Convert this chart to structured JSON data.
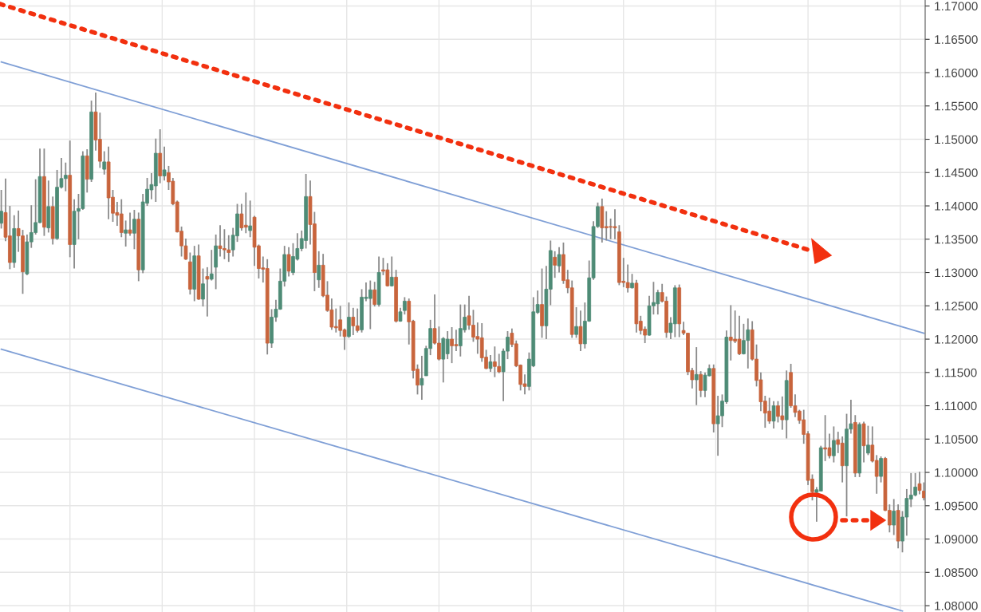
{
  "chart_data": {
    "type": "candlestick",
    "categories": [
      null,
      null,
      null,
      null,
      null,
      null,
      null,
      null,
      null,
      null,
      null,
      null,
      null,
      null,
      null,
      null,
      null,
      null,
      null,
      null,
      null,
      null,
      null,
      null,
      null,
      null,
      null,
      null,
      null,
      null,
      null,
      null,
      null,
      null,
      null,
      null,
      null,
      null,
      null,
      null,
      null,
      null,
      null,
      null,
      null,
      null,
      null,
      null,
      null,
      null,
      null,
      null,
      null,
      null,
      null,
      null,
      null,
      null,
      null,
      null,
      null,
      null,
      null,
      null,
      null,
      null,
      null,
      null,
      null,
      null,
      null,
      null,
      null,
      null,
      null,
      null,
      null,
      null,
      null,
      null,
      null,
      null,
      null,
      null,
      null,
      null,
      null,
      null,
      null,
      null,
      null,
      null,
      null,
      null,
      null,
      null,
      null,
      null,
      null,
      null,
      null,
      null,
      null,
      null,
      null,
      null,
      null,
      null,
      null,
      null,
      null,
      null,
      null,
      null,
      null,
      null,
      null,
      null,
      null,
      null,
      null,
      null,
      null,
      null,
      null,
      null,
      null,
      null,
      null,
      null,
      null,
      null,
      null,
      null,
      null,
      null,
      null,
      null,
      null,
      null,
      null,
      null,
      null,
      null,
      null,
      null,
      null,
      null,
      null,
      null,
      null,
      null,
      null,
      null,
      null,
      null,
      null,
      null,
      null,
      null,
      null,
      null,
      null,
      null,
      null,
      null,
      null,
      null,
      null,
      null,
      null,
      null,
      null,
      null,
      null,
      null,
      null,
      null,
      null,
      null,
      null,
      null,
      null,
      null,
      null,
      null,
      null,
      null,
      null,
      null,
      null,
      null,
      null,
      null,
      null,
      null,
      null,
      null,
      null,
      null,
      null,
      null,
      null,
      null,
      null,
      null,
      null,
      null,
      null,
      null,
      null,
      null,
      null,
      null,
      null,
      null
    ],
    "ohlc": [
      [
        1.1374,
        1.1424,
        1.1366,
        1.1392
      ],
      [
        1.139,
        1.1441,
        1.1347,
        1.1353
      ],
      [
        1.1355,
        1.14,
        1.1305,
        1.1315
      ],
      [
        1.1315,
        1.1386,
        1.1307,
        1.1366
      ],
      [
        1.1366,
        1.1393,
        1.1331,
        1.1355
      ],
      [
        1.1355,
        1.1364,
        1.1268,
        1.1301
      ],
      [
        1.1298,
        1.1357,
        1.1296,
        1.1346
      ],
      [
        1.1346,
        1.1401,
        1.1337,
        1.136
      ],
      [
        1.136,
        1.144,
        1.1357,
        1.1375
      ],
      [
        1.1375,
        1.1486,
        1.1374,
        1.1444
      ],
      [
        1.1444,
        1.1486,
        1.1355,
        1.1368
      ],
      [
        1.1367,
        1.1438,
        1.136,
        1.1399
      ],
      [
        1.1399,
        1.1414,
        1.1342,
        1.1351
      ],
      [
        1.1351,
        1.1454,
        1.1349,
        1.1428
      ],
      [
        1.1428,
        1.1472,
        1.1426,
        1.1441
      ],
      [
        1.1441,
        1.1465,
        1.1422,
        1.1446
      ],
      [
        1.1446,
        1.1498,
        1.1323,
        1.1342
      ],
      [
        1.1342,
        1.141,
        1.1306,
        1.1392
      ],
      [
        1.1392,
        1.1418,
        1.135,
        1.1396
      ],
      [
        1.1396,
        1.1482,
        1.1394,
        1.1475
      ],
      [
        1.1475,
        1.1485,
        1.142,
        1.144
      ],
      [
        1.144,
        1.1558,
        1.1436,
        1.1541
      ],
      [
        1.1541,
        1.157,
        1.1483,
        1.1499
      ],
      [
        1.15,
        1.154,
        1.1457,
        1.1467
      ],
      [
        1.1455,
        1.1482,
        1.1447,
        1.1466
      ],
      [
        1.1466,
        1.1489,
        1.138,
        1.1412
      ],
      [
        1.1413,
        1.1424,
        1.1376,
        1.1389
      ],
      [
        1.139,
        1.1406,
        1.137,
        1.1386
      ],
      [
        1.1388,
        1.141,
        1.1353,
        1.136
      ],
      [
        1.1359,
        1.1378,
        1.1339,
        1.1364
      ],
      [
        1.1364,
        1.139,
        1.1355,
        1.1359
      ],
      [
        1.1359,
        1.1394,
        1.1335,
        1.138
      ],
      [
        1.138,
        1.139,
        1.1287,
        1.1304
      ],
      [
        1.1304,
        1.1418,
        1.1299,
        1.1406
      ],
      [
        1.1404,
        1.1442,
        1.14,
        1.1425
      ],
      [
        1.1424,
        1.1449,
        1.141,
        1.1432
      ],
      [
        1.143,
        1.1501,
        1.1406,
        1.1479
      ],
      [
        1.1479,
        1.1515,
        1.1434,
        1.1445
      ],
      [
        1.1445,
        1.1489,
        1.1438,
        1.1454
      ],
      [
        1.145,
        1.146,
        1.1424,
        1.1436
      ],
      [
        1.1437,
        1.1442,
        1.1401,
        1.1403
      ],
      [
        1.1406,
        1.1408,
        1.136,
        1.1361
      ],
      [
        1.1362,
        1.1369,
        1.1324,
        1.134
      ],
      [
        1.134,
        1.1351,
        1.1319,
        1.132
      ],
      [
        1.1316,
        1.133,
        1.1267,
        1.1275
      ],
      [
        1.1275,
        1.134,
        1.1257,
        1.1325
      ],
      [
        1.1325,
        1.1342,
        1.1259,
        1.126
      ],
      [
        1.126,
        1.1306,
        1.1249,
        1.1283
      ],
      [
        1.1294,
        1.1308,
        1.1234,
        1.129
      ],
      [
        1.129,
        1.1334,
        1.1288,
        1.1298
      ],
      [
        1.1308,
        1.1357,
        1.1275,
        1.134
      ],
      [
        1.134,
        1.1371,
        1.1324,
        1.1336
      ],
      [
        1.1336,
        1.1365,
        1.132,
        1.1334
      ],
      [
        1.1334,
        1.1356,
        1.1316,
        1.133
      ],
      [
        1.1334,
        1.1367,
        1.1324,
        1.1356
      ],
      [
        1.1355,
        1.1403,
        1.1346,
        1.1388
      ],
      [
        1.1388,
        1.1403,
        1.1363,
        1.1367
      ],
      [
        1.1371,
        1.142,
        1.1359,
        1.1368
      ],
      [
        1.1363,
        1.1408,
        1.1353,
        1.137
      ],
      [
        1.1383,
        1.1385,
        1.131,
        1.1338
      ],
      [
        1.134,
        1.1342,
        1.1291,
        1.1306
      ],
      [
        1.1307,
        1.1324,
        1.1285,
        1.1305
      ],
      [
        1.1306,
        1.132,
        1.1177,
        1.1194
      ],
      [
        1.1194,
        1.1245,
        1.1187,
        1.1233
      ],
      [
        1.1233,
        1.1259,
        1.1226,
        1.1245
      ],
      [
        1.1245,
        1.1306,
        1.1244,
        1.1287
      ],
      [
        1.1287,
        1.134,
        1.1279,
        1.1327
      ],
      [
        1.1327,
        1.1338,
        1.1294,
        1.1302
      ],
      [
        1.13,
        1.1344,
        1.1296,
        1.1324
      ],
      [
        1.132,
        1.1359,
        1.1318,
        1.1336
      ],
      [
        1.1336,
        1.1363,
        1.1332,
        1.1351
      ],
      [
        1.1348,
        1.1448,
        1.1336,
        1.1414
      ],
      [
        1.1414,
        1.1438,
        1.1342,
        1.1372
      ],
      [
        1.1373,
        1.1391,
        1.1272,
        1.13
      ],
      [
        1.1289,
        1.1332,
        1.1277,
        1.1311
      ],
      [
        1.1311,
        1.1328,
        1.1263,
        1.1265
      ],
      [
        1.1266,
        1.1287,
        1.1241,
        1.1243
      ],
      [
        1.1244,
        1.1261,
        1.1214,
        1.1218
      ],
      [
        1.1219,
        1.1246,
        1.121,
        1.1217
      ],
      [
        1.1229,
        1.125,
        1.1204,
        1.1213
      ],
      [
        1.1214,
        1.1216,
        1.1184,
        1.1204
      ],
      [
        1.1204,
        1.1255,
        1.1202,
        1.1233
      ],
      [
        1.1233,
        1.1247,
        1.1206,
        1.122
      ],
      [
        1.122,
        1.1246,
        1.121,
        1.1213
      ],
      [
        1.1214,
        1.1275,
        1.121,
        1.1263
      ],
      [
        1.1261,
        1.1285,
        1.1257,
        1.1263
      ],
      [
        1.1261,
        1.1288,
        1.1215,
        1.1274
      ],
      [
        1.1274,
        1.1286,
        1.1249,
        1.1252
      ],
      [
        1.1252,
        1.1324,
        1.1249,
        1.13
      ],
      [
        1.1304,
        1.1322,
        1.1296,
        1.1302
      ],
      [
        1.1304,
        1.1314,
        1.1279,
        1.128
      ],
      [
        1.128,
        1.1324,
        1.1279,
        1.1293
      ],
      [
        1.1293,
        1.1304,
        1.1225,
        1.1227
      ],
      [
        1.1227,
        1.1247,
        1.1226,
        1.1241
      ],
      [
        1.1243,
        1.1263,
        1.1237,
        1.1257
      ],
      [
        1.1257,
        1.1261,
        1.1192,
        1.1226
      ],
      [
        1.1227,
        1.1229,
        1.1141,
        1.1153
      ],
      [
        1.1155,
        1.1162,
        1.1117,
        1.1131
      ],
      [
        1.1131,
        1.1175,
        1.1109,
        1.1141
      ],
      [
        1.1145,
        1.119,
        1.1145,
        1.1186
      ],
      [
        1.1186,
        1.1229,
        1.1176,
        1.1216
      ],
      [
        1.1216,
        1.1267,
        1.1192,
        1.1194
      ],
      [
        1.1194,
        1.1219,
        1.1168,
        1.117
      ],
      [
        1.117,
        1.1203,
        1.1135,
        1.1201
      ],
      [
        1.1178,
        1.1212,
        1.117,
        1.12
      ],
      [
        1.12,
        1.1218,
        1.1164,
        1.119
      ],
      [
        1.1192,
        1.1214,
        1.1182,
        1.119
      ],
      [
        1.119,
        1.1252,
        1.1174,
        1.1216
      ],
      [
        1.1214,
        1.1252,
        1.121,
        1.1233
      ],
      [
        1.1235,
        1.1265,
        1.1214,
        1.1221
      ],
      [
        1.1221,
        1.1244,
        1.1196,
        1.1203
      ],
      [
        1.1204,
        1.1225,
        1.1178,
        1.12
      ],
      [
        1.1202,
        1.1224,
        1.1166,
        1.1172
      ],
      [
        1.1173,
        1.1184,
        1.1155,
        1.1156
      ],
      [
        1.1156,
        1.1176,
        1.1151,
        1.1166
      ],
      [
        1.1166,
        1.1189,
        1.1143,
        1.1159
      ],
      [
        1.1159,
        1.1178,
        1.1149,
        1.1151
      ],
      [
        1.1151,
        1.1186,
        1.1107,
        1.1182
      ],
      [
        1.1182,
        1.1212,
        1.117,
        1.1203
      ],
      [
        1.1209,
        1.1216,
        1.1188,
        1.1192
      ],
      [
        1.1193,
        1.1198,
        1.1158,
        1.116
      ],
      [
        1.1161,
        1.1162,
        1.1123,
        1.1132
      ],
      [
        1.1133,
        1.1147,
        1.1117,
        1.1129
      ],
      [
        1.1129,
        1.118,
        1.1123,
        1.117
      ],
      [
        1.116,
        1.1263,
        1.1158,
        1.1241
      ],
      [
        1.124,
        1.1273,
        1.1238,
        1.1252
      ],
      [
        1.1252,
        1.1306,
        1.1202,
        1.122
      ],
      [
        1.122,
        1.131,
        1.12,
        1.1275
      ],
      [
        1.1275,
        1.1348,
        1.1251,
        1.1333
      ],
      [
        1.1323,
        1.1332,
        1.1292,
        1.1311
      ],
      [
        1.131,
        1.1338,
        1.13,
        1.1327
      ],
      [
        1.1327,
        1.1345,
        1.1283,
        1.1288
      ],
      [
        1.1289,
        1.1304,
        1.1269,
        1.1277
      ],
      [
        1.1277,
        1.1288,
        1.1202,
        1.1207
      ],
      [
        1.1207,
        1.1248,
        1.1202,
        1.1219
      ],
      [
        1.1219,
        1.1243,
        1.1182,
        1.1193
      ],
      [
        1.1193,
        1.1255,
        1.1186,
        1.1227
      ],
      [
        1.1227,
        1.1318,
        1.1226,
        1.1292
      ],
      [
        1.1292,
        1.1377,
        1.1289,
        1.1369
      ],
      [
        1.1369,
        1.1405,
        1.1367,
        1.1399
      ],
      [
        1.1399,
        1.1411,
        1.1345,
        1.1367
      ],
      [
        1.1369,
        1.1392,
        1.1348,
        1.1367
      ],
      [
        1.1369,
        1.1381,
        1.135,
        1.1368
      ],
      [
        1.1369,
        1.1395,
        1.135,
        1.1367
      ],
      [
        1.1361,
        1.1371,
        1.1281,
        1.1285
      ],
      [
        1.1287,
        1.1322,
        1.1278,
        1.1285
      ],
      [
        1.1285,
        1.1312,
        1.127,
        1.1277
      ],
      [
        1.1277,
        1.1298,
        1.1276,
        1.1284
      ],
      [
        1.1284,
        1.1289,
        1.121,
        1.1223
      ],
      [
        1.1227,
        1.1235,
        1.1207,
        1.1213
      ],
      [
        1.1215,
        1.1219,
        1.1194,
        1.1206
      ],
      [
        1.1206,
        1.1265,
        1.1205,
        1.125
      ],
      [
        1.125,
        1.1286,
        1.1237,
        1.1255
      ],
      [
        1.1253,
        1.1274,
        1.1237,
        1.127
      ],
      [
        1.127,
        1.1283,
        1.1255,
        1.1257
      ],
      [
        1.1257,
        1.1264,
        1.1202,
        1.121
      ],
      [
        1.121,
        1.1233,
        1.12,
        1.1224
      ],
      [
        1.1223,
        1.1281,
        1.1203,
        1.1277
      ],
      [
        1.1277,
        1.1282,
        1.1203,
        1.1223
      ],
      [
        1.1213,
        1.1226,
        1.1206,
        1.1209
      ],
      [
        1.1209,
        1.1209,
        1.1146,
        1.1151
      ],
      [
        1.1153,
        1.1157,
        1.1126,
        1.1139
      ],
      [
        1.1139,
        1.1188,
        1.1101,
        1.1147
      ],
      [
        1.1147,
        1.1152,
        1.1113,
        1.1123
      ],
      [
        1.1123,
        1.115,
        1.1113,
        1.1146
      ],
      [
        1.1145,
        1.1162,
        1.1144,
        1.1156
      ],
      [
        1.1156,
        1.1162,
        1.106,
        1.1073
      ],
      [
        1.1073,
        1.1115,
        1.1025,
        1.1085
      ],
      [
        1.1085,
        1.1117,
        1.1068,
        1.1107
      ],
      [
        1.1106,
        1.1213,
        1.1103,
        1.1203
      ],
      [
        1.1203,
        1.1251,
        1.1168,
        1.1198
      ],
      [
        1.12,
        1.1243,
        1.1194,
        1.1197
      ],
      [
        1.12,
        1.1235,
        1.1176,
        1.1178
      ],
      [
        1.1178,
        1.1223,
        1.1177,
        1.1198
      ],
      [
        1.1198,
        1.1231,
        1.1156,
        1.1214
      ],
      [
        1.1214,
        1.1227,
        1.1168,
        1.117
      ],
      [
        1.117,
        1.1192,
        1.1129,
        1.1138
      ],
      [
        1.1139,
        1.115,
        1.1092,
        1.1106
      ],
      [
        1.1107,
        1.1115,
        1.1067,
        1.1089
      ],
      [
        1.1092,
        1.1112,
        1.1073,
        1.1077
      ],
      [
        1.1077,
        1.1107,
        1.1066,
        1.11
      ],
      [
        1.11,
        1.1107,
        1.1075,
        1.1084
      ],
      [
        1.1085,
        1.1114,
        1.1064,
        1.1079
      ],
      [
        1.1079,
        1.1153,
        1.1051,
        1.1138
      ],
      [
        1.115,
        1.1163,
        1.1097,
        1.11
      ],
      [
        1.11,
        1.1117,
        1.1083,
        1.109
      ],
      [
        1.1092,
        1.1094,
        1.1073,
        1.1078
      ],
      [
        1.1079,
        1.1094,
        1.1043,
        1.1057
      ],
      [
        1.1058,
        1.1062,
        1.0981,
        1.0988
      ],
      [
        1.099,
        1.0997,
        1.0958,
        1.0971
      ],
      [
        1.097,
        1.0978,
        1.0926,
        1.0974
      ],
      [
        1.0972,
        1.104,
        1.0972,
        1.1037
      ],
      [
        1.1037,
        1.1086,
        1.1017,
        1.1035
      ],
      [
        1.1037,
        1.1058,
        1.1021,
        1.1025
      ],
      [
        1.1025,
        1.1069,
        1.1015,
        1.1048
      ],
      [
        1.1049,
        1.1061,
        1.1029,
        1.1042
      ],
      [
        1.1044,
        1.1054,
        1.0985,
        1.101
      ],
      [
        1.101,
        1.1088,
        1.0934,
        1.1065
      ],
      [
        1.1065,
        1.1109,
        1.1058,
        1.1073
      ],
      [
        1.1075,
        1.1086,
        1.0993,
        1.0999
      ],
      [
        1.0999,
        1.1075,
        1.0993,
        1.1072
      ],
      [
        1.1073,
        1.1076,
        1.1015,
        1.104
      ],
      [
        1.1029,
        1.107,
        1.1026,
        1.1041
      ],
      [
        1.1041,
        1.1069,
        1.1015,
        1.1017
      ],
      [
        1.1018,
        1.1026,
        1.0968,
        1.0994
      ],
      [
        1.0994,
        1.1024,
        1.0985,
        1.1021
      ],
      [
        1.1021,
        1.1023,
        1.0942,
        1.0943
      ],
      [
        1.0943,
        1.0952,
        1.091,
        1.0921
      ],
      [
        1.0921,
        1.096,
        1.0906,
        1.0942
      ],
      [
        1.0943,
        1.0952,
        1.0886,
        1.0897
      ],
      [
        1.0897,
        1.0942,
        1.088,
        1.0933
      ],
      [
        1.0933,
        1.0975,
        1.0905,
        1.0961
      ],
      [
        1.096,
        1.0999,
        1.0948,
        1.0966
      ],
      [
        1.0966,
        1.0999,
        1.0964,
        1.0978
      ],
      [
        1.0983,
        1.1001,
        1.0967,
        1.0973
      ],
      [
        1.0972,
        1.0985,
        1.0958,
        1.0962
      ]
    ],
    "colors": [
      "#4e8b76",
      "#c8643c",
      "#c8643c",
      "#4e8b76",
      "#c8643c",
      "#c8643c",
      "#4e8b76",
      "#4e8b76",
      "#4e8b76",
      "#4e8b76",
      "#c8643c",
      "#4e8b76",
      "#c8643c",
      "#4e8b76",
      "#4e8b76",
      "#4e8b76",
      "#c8643c",
      "#4e8b76",
      "#4e8b76",
      "#4e8b76",
      "#c8643c",
      "#4e8b76",
      "#c8643c",
      "#c8643c",
      "#4e8b76",
      "#c8643c",
      "#c8643c",
      "#c8643c",
      "#c8643c",
      "#4e8b76",
      "#c8643c",
      "#4e8b76",
      "#c8643c",
      "#4e8b76",
      "#4e8b76",
      "#4e8b76",
      "#4e8b76",
      "#c8643c",
      "#4e8b76",
      "#c8643c",
      "#c8643c",
      "#c8643c",
      "#c8643c",
      "#c8643c",
      "#c8643c",
      "#4e8b76",
      "#c8643c",
      "#4e8b76",
      "#c8643c",
      "#4e8b76",
      "#4e8b76",
      "#c8643c",
      "#c8643c",
      "#c8643c",
      "#4e8b76",
      "#4e8b76",
      "#c8643c",
      "#c8643c",
      "#4e8b76",
      "#c8643c",
      "#c8643c",
      "#c8643c",
      "#c8643c",
      "#4e8b76",
      "#4e8b76",
      "#4e8b76",
      "#4e8b76",
      "#c8643c",
      "#4e8b76",
      "#4e8b76",
      "#4e8b76",
      "#4e8b76",
      "#c8643c",
      "#c8643c",
      "#4e8b76",
      "#c8643c",
      "#c8643c",
      "#c8643c",
      "#c8643c",
      "#c8643c",
      "#c8643c",
      "#4e8b76",
      "#c8643c",
      "#c8643c",
      "#4e8b76",
      "#4e8b76",
      "#4e8b76",
      "#c8643c",
      "#4e8b76",
      "#c8643c",
      "#c8643c",
      "#4e8b76",
      "#c8643c",
      "#4e8b76",
      "#4e8b76",
      "#c8643c",
      "#c8643c",
      "#c8643c",
      "#4e8b76",
      "#4e8b76",
      "#4e8b76",
      "#c8643c",
      "#c8643c",
      "#4e8b76",
      "#4e8b76",
      "#c8643c",
      "#c8643c",
      "#4e8b76",
      "#4e8b76",
      "#c8643c",
      "#c8643c",
      "#c8643c",
      "#c8643c",
      "#c8643c",
      "#4e8b76",
      "#c8643c",
      "#c8643c",
      "#4e8b76",
      "#4e8b76",
      "#c8643c",
      "#c8643c",
      "#c8643c",
      "#c8643c",
      "#4e8b76",
      "#4e8b76",
      "#4e8b76",
      "#c8643c",
      "#4e8b76",
      "#4e8b76",
      "#c8643c",
      "#4e8b76",
      "#c8643c",
      "#c8643c",
      "#c8643c",
      "#4e8b76",
      "#c8643c",
      "#4e8b76",
      "#4e8b76",
      "#4e8b76",
      "#4e8b76",
      "#c8643c",
      "#c8643c",
      "#c8643c",
      "#c8643c",
      "#c8643c",
      "#c8643c",
      "#c8643c",
      "#4e8b76",
      "#c8643c",
      "#c8643c",
      "#c8643c",
      "#4e8b76",
      "#4e8b76",
      "#4e8b76",
      "#c8643c",
      "#c8643c",
      "#4e8b76",
      "#4e8b76",
      "#c8643c",
      "#c8643c",
      "#c8643c",
      "#c8643c",
      "#4e8b76",
      "#c8643c",
      "#4e8b76",
      "#4e8b76",
      "#c8643c",
      "#4e8b76",
      "#4e8b76",
      "#4e8b76",
      "#c8643c",
      "#c8643c",
      "#c8643c",
      "#4e8b76",
      "#4e8b76",
      "#c8643c",
      "#c8643c",
      "#c8643c",
      "#c8643c",
      "#c8643c",
      "#4e8b76",
      "#c8643c",
      "#c8643c",
      "#4e8b76",
      "#c8643c",
      "#c8643c",
      "#c8643c",
      "#c8643c",
      "#c8643c",
      "#c8643c",
      "#4e8b76",
      "#4e8b76",
      "#c8643c",
      "#c8643c",
      "#4e8b76",
      "#c8643c",
      "#c8643c",
      "#4e8b76",
      "#4e8b76",
      "#c8643c",
      "#4e8b76",
      "#c8643c",
      "#4e8b76",
      "#c8643c",
      "#c8643c",
      "#4e8b76",
      "#c8643c",
      "#c8643c",
      "#4e8b76",
      "#c8643c",
      "#4e8b76",
      "#4e8b76",
      "#4e8b76",
      "#4e8b76",
      "#c8643c",
      "#c8643c"
    ],
    "series": [
      {
        "type": "line",
        "color": "#7f9fd6",
        "values": [
          1.1616,
          null,
          null,
          null,
          null,
          null,
          null,
          null,
          null,
          null,
          null,
          null,
          null,
          null,
          null,
          null,
          null,
          null,
          null,
          null,
          null,
          null,
          null,
          null,
          null,
          null,
          null,
          null,
          null,
          null,
          null,
          null,
          null,
          null,
          null,
          null,
          null,
          null,
          null,
          null,
          null,
          null,
          null,
          null,
          null,
          null,
          null,
          null,
          null,
          null,
          null,
          null,
          null,
          null,
          null,
          null,
          null,
          null,
          null,
          null,
          null,
          null,
          null,
          null,
          null,
          null,
          null,
          null,
          null,
          null,
          null,
          null,
          null,
          null,
          null,
          null,
          null,
          null,
          null,
          null,
          null,
          null,
          null,
          null,
          null,
          null,
          null,
          null,
          null,
          null,
          null,
          null,
          null,
          null,
          null,
          null,
          null,
          null,
          null,
          null,
          null,
          null,
          null,
          null,
          null,
          null,
          null,
          null,
          null,
          null,
          null,
          null,
          null,
          null,
          null,
          null,
          null,
          null,
          null,
          null,
          null,
          null,
          null,
          null,
          null,
          null,
          null,
          null,
          null,
          null,
          null,
          null,
          null,
          null,
          null,
          null,
          null,
          null,
          null,
          null,
          null,
          null,
          null,
          null,
          null,
          null,
          null,
          null,
          null,
          null,
          null,
          null,
          null,
          null,
          null,
          null,
          null,
          null,
          null,
          null,
          null,
          null,
          null,
          null,
          null,
          null,
          null,
          null,
          null,
          null,
          null,
          null,
          null,
          null,
          null,
          null,
          null,
          null,
          null,
          null,
          null,
          null,
          null,
          null,
          null,
          null,
          null,
          null,
          null,
          null,
          null,
          null,
          null,
          null,
          null,
          null,
          null,
          null,
          null,
          null,
          null,
          null,
          null,
          null,
          null,
          null,
          null,
          null,
          null,
          null,
          null,
          null,
          null,
          null,
          null,
          1.1209
        ]
      },
      {
        "type": "line",
        "color": "#7f9fd6",
        "values": [
          1.1185,
          null,
          null,
          null,
          null,
          null,
          null,
          null,
          null,
          null,
          null,
          null,
          null,
          null,
          null,
          null,
          null,
          null,
          null,
          null,
          null,
          null,
          null,
          null,
          null,
          null,
          null,
          null,
          null,
          null,
          null,
          null,
          null,
          null,
          null,
          null,
          null,
          null,
          null,
          null,
          null,
          null,
          null,
          null,
          null,
          null,
          null,
          null,
          null,
          null,
          null,
          null,
          null,
          null,
          null,
          null,
          null,
          null,
          null,
          null,
          null,
          null,
          null,
          null,
          null,
          null,
          null,
          null,
          null,
          null,
          null,
          null,
          null,
          null,
          null,
          null,
          null,
          null,
          null,
          null,
          null,
          null,
          null,
          null,
          null,
          null,
          null,
          null,
          null,
          null,
          null,
          null,
          null,
          null,
          null,
          null,
          null,
          null,
          null,
          null,
          null,
          null,
          null,
          null,
          null,
          null,
          null,
          null,
          null,
          null,
          null,
          null,
          null,
          null,
          null,
          null,
          null,
          null,
          null,
          null,
          null,
          null,
          null,
          null,
          null,
          null,
          null,
          null,
          null,
          null,
          null,
          null,
          null,
          null,
          null,
          null,
          null,
          null,
          null,
          null,
          null,
          null,
          null,
          null,
          null,
          null,
          null,
          null,
          null,
          null,
          null,
          null,
          null,
          null,
          null,
          null,
          null,
          null,
          null,
          null,
          null,
          null,
          null,
          null,
          null,
          null,
          null,
          null,
          null,
          null,
          null,
          null,
          null,
          null,
          null,
          null,
          null,
          null,
          null,
          null,
          null,
          null,
          null,
          null,
          null,
          null,
          null,
          null,
          null,
          null,
          null,
          null,
          null,
          null,
          null,
          null,
          null,
          null,
          null,
          null,
          null,
          null,
          null,
          null,
          null,
          null,
          null,
          null,
          null,
          null,
          1.0792,
          null,
          null,
          null,
          null,
          null
        ]
      }
    ],
    "ylim": [
      1.07905,
      1.1709
    ],
    "yticks": [
      {
        "value": 1.08,
        "label": "1.08000"
      },
      {
        "value": 1.085,
        "label": "1.08500"
      },
      {
        "value": 1.09,
        "label": "1.09000"
      },
      {
        "value": 1.095,
        "label": "1.09500"
      },
      {
        "value": 1.1,
        "label": "1.10000"
      },
      {
        "value": 1.105,
        "label": "1.10500"
      },
      {
        "value": 1.11,
        "label": "1.11000"
      },
      {
        "value": 1.115,
        "label": "1.11500"
      },
      {
        "value": 1.12,
        "label": "1.12000"
      },
      {
        "value": 1.125,
        "label": "1.12500"
      },
      {
        "value": 1.13,
        "label": "1.13000"
      },
      {
        "value": 1.135,
        "label": "1.13500"
      },
      {
        "value": 1.14,
        "label": "1.14000"
      },
      {
        "value": 1.145,
        "label": "1.14500"
      },
      {
        "value": 1.15,
        "label": "1.15000"
      },
      {
        "value": 1.155,
        "label": "1.15500"
      },
      {
        "value": 1.16,
        "label": "1.16000"
      },
      {
        "value": 1.165,
        "label": "1.16500"
      },
      {
        "value": 1.17,
        "label": "1.17000"
      }
    ],
    "grid": true,
    "tick_labels": "y"
  }
}
